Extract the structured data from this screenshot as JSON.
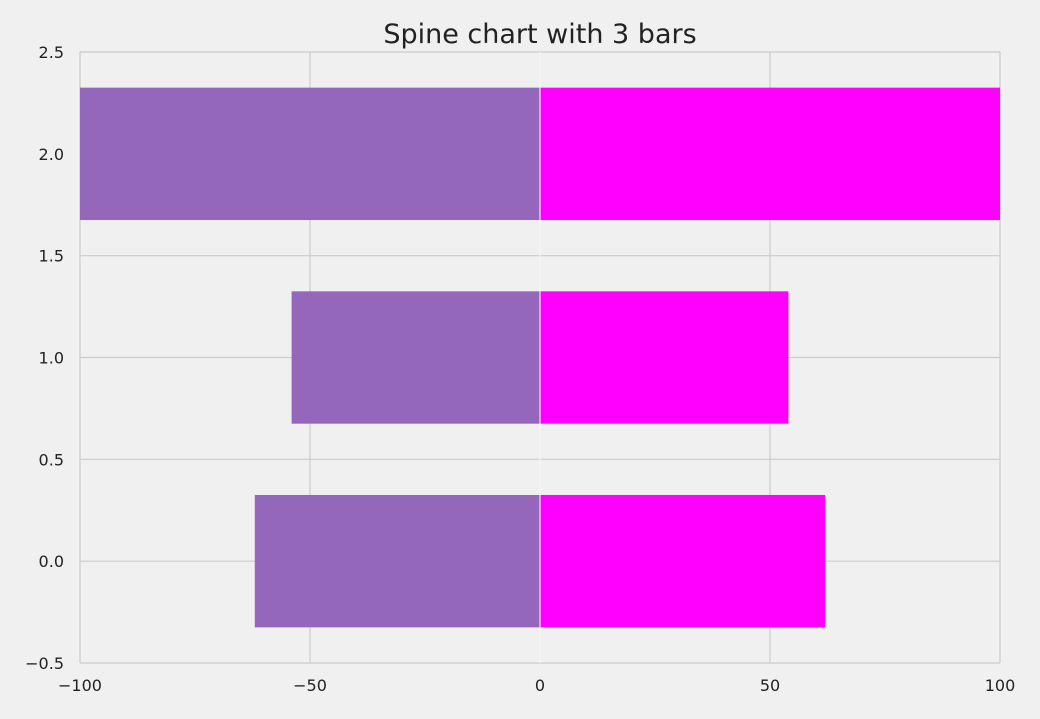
{
  "chart_data": {
    "type": "bar",
    "orientation": "horizontal",
    "title": "Spine chart with 3 bars",
    "xlabel": "",
    "ylabel": "",
    "xlim": [
      -100,
      100
    ],
    "ylim": [
      -0.5,
      2.5
    ],
    "x_ticks": [
      -100,
      -50,
      0,
      50,
      100
    ],
    "x_tick_labels": [
      "−100",
      "−50",
      "0",
      "50",
      "100"
    ],
    "y_ticks": [
      -0.5,
      0.0,
      0.5,
      1.0,
      1.5,
      2.0,
      2.5
    ],
    "y_tick_labels": [
      "−0.5",
      "0.0",
      "0.5",
      "1.0",
      "1.5",
      "2.0",
      "2.5"
    ],
    "categories": [
      0,
      1,
      2
    ],
    "bar_height": 0.65,
    "series": [
      {
        "values": [
          -62,
          -54,
          -100
        ],
        "color": "#9467bd"
      },
      {
        "values": [
          62,
          54,
          100
        ],
        "color": "#ff00ff"
      }
    ],
    "grid": true,
    "grid_color": "#cbcbcb",
    "background": "#f0f0f0",
    "legend": "none"
  }
}
